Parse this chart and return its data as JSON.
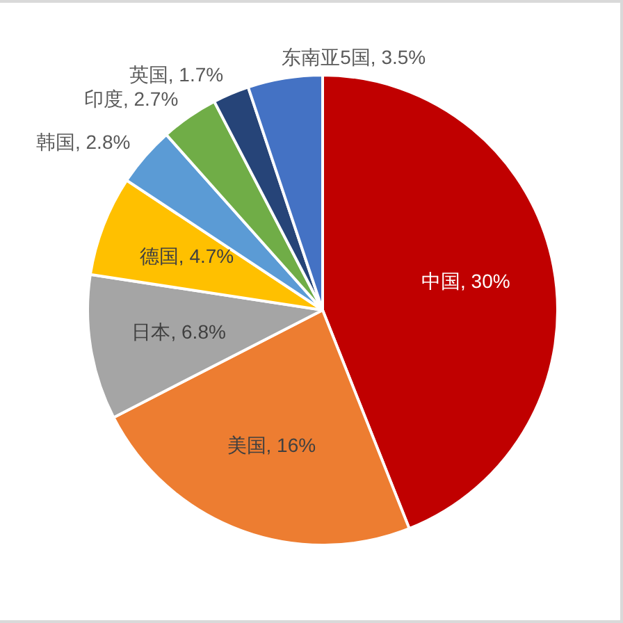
{
  "chart_data": {
    "type": "pie",
    "categories": [
      "中国",
      "美国",
      "日本",
      "德国",
      "韩国",
      "印度",
      "英国",
      "东南亚5国"
    ],
    "values": [
      30,
      16,
      6.8,
      4.7,
      2.8,
      2.7,
      1.7,
      3.5
    ],
    "colors": [
      "#c00000",
      "#ed7d31",
      "#a5a5a5",
      "#ffc000",
      "#5b9bd5",
      "#70ad47",
      "#264478",
      "#4472c4"
    ],
    "value_labels": [
      "30%",
      "16%",
      "6.8%",
      "4.7%",
      "2.8%",
      "2.7%",
      "1.7%",
      "3.5%"
    ]
  }
}
